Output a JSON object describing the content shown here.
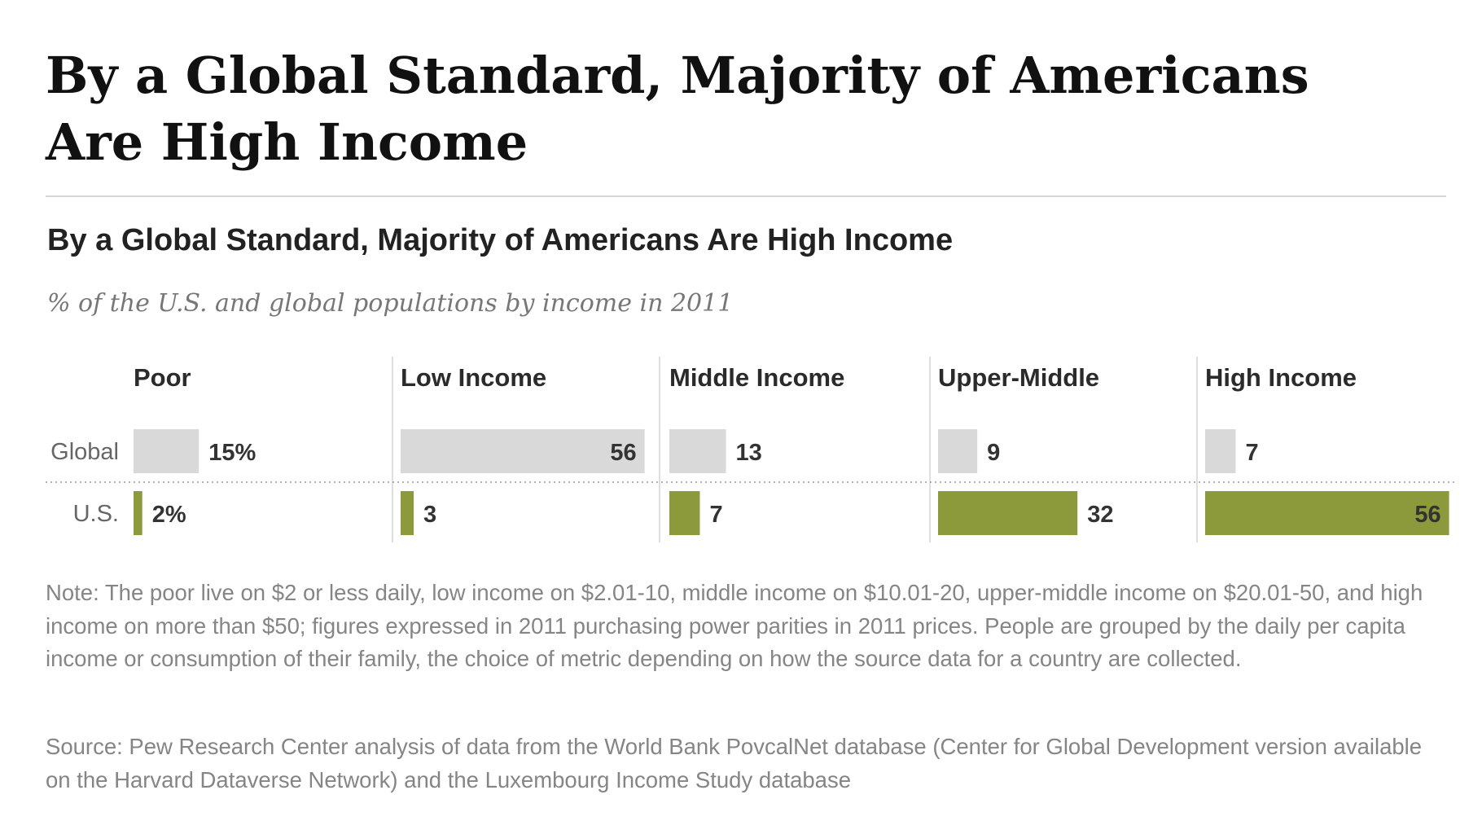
{
  "header": {
    "title": "By a Global Standard, Majority of Americans Are High Income"
  },
  "chart_data": {
    "type": "bar",
    "title": "By a Global Standard, Majority of Americans Are High Income",
    "subtitle": "% of the U.S. and global populations by income in 2011",
    "categories": [
      "Poor",
      "Low Income",
      "Middle Income",
      "Upper-Middle",
      "High Income"
    ],
    "series": [
      {
        "name": "Global",
        "values": [
          15,
          56,
          13,
          9,
          7
        ],
        "labels": [
          "15%",
          "56",
          "13",
          "9",
          "7"
        ],
        "color": "#d9d9d9"
      },
      {
        "name": "U.S.",
        "values": [
          2,
          3,
          7,
          32,
          56
        ],
        "labels": [
          "2%",
          "3",
          "7",
          "32",
          "56"
        ],
        "color": "#8c9a3c"
      }
    ],
    "note": "Note: The poor live on $2 or less daily, low income on $2.01-10, middle income on $10.01-20, upper-middle income on $20.01-50, and high income on more than $50; figures expressed in 2011 purchasing power parities in 2011 prices. People are grouped by the daily per capita income or consumption of their family, the choice of metric depending on how the source data for a country are collected.",
    "source": "Source: Pew Research Center analysis of data from the World Bank PovcalNet database (Center for Global Development version available on the Harvard Dataverse Network) and the Luxembourg Income Study database"
  }
}
